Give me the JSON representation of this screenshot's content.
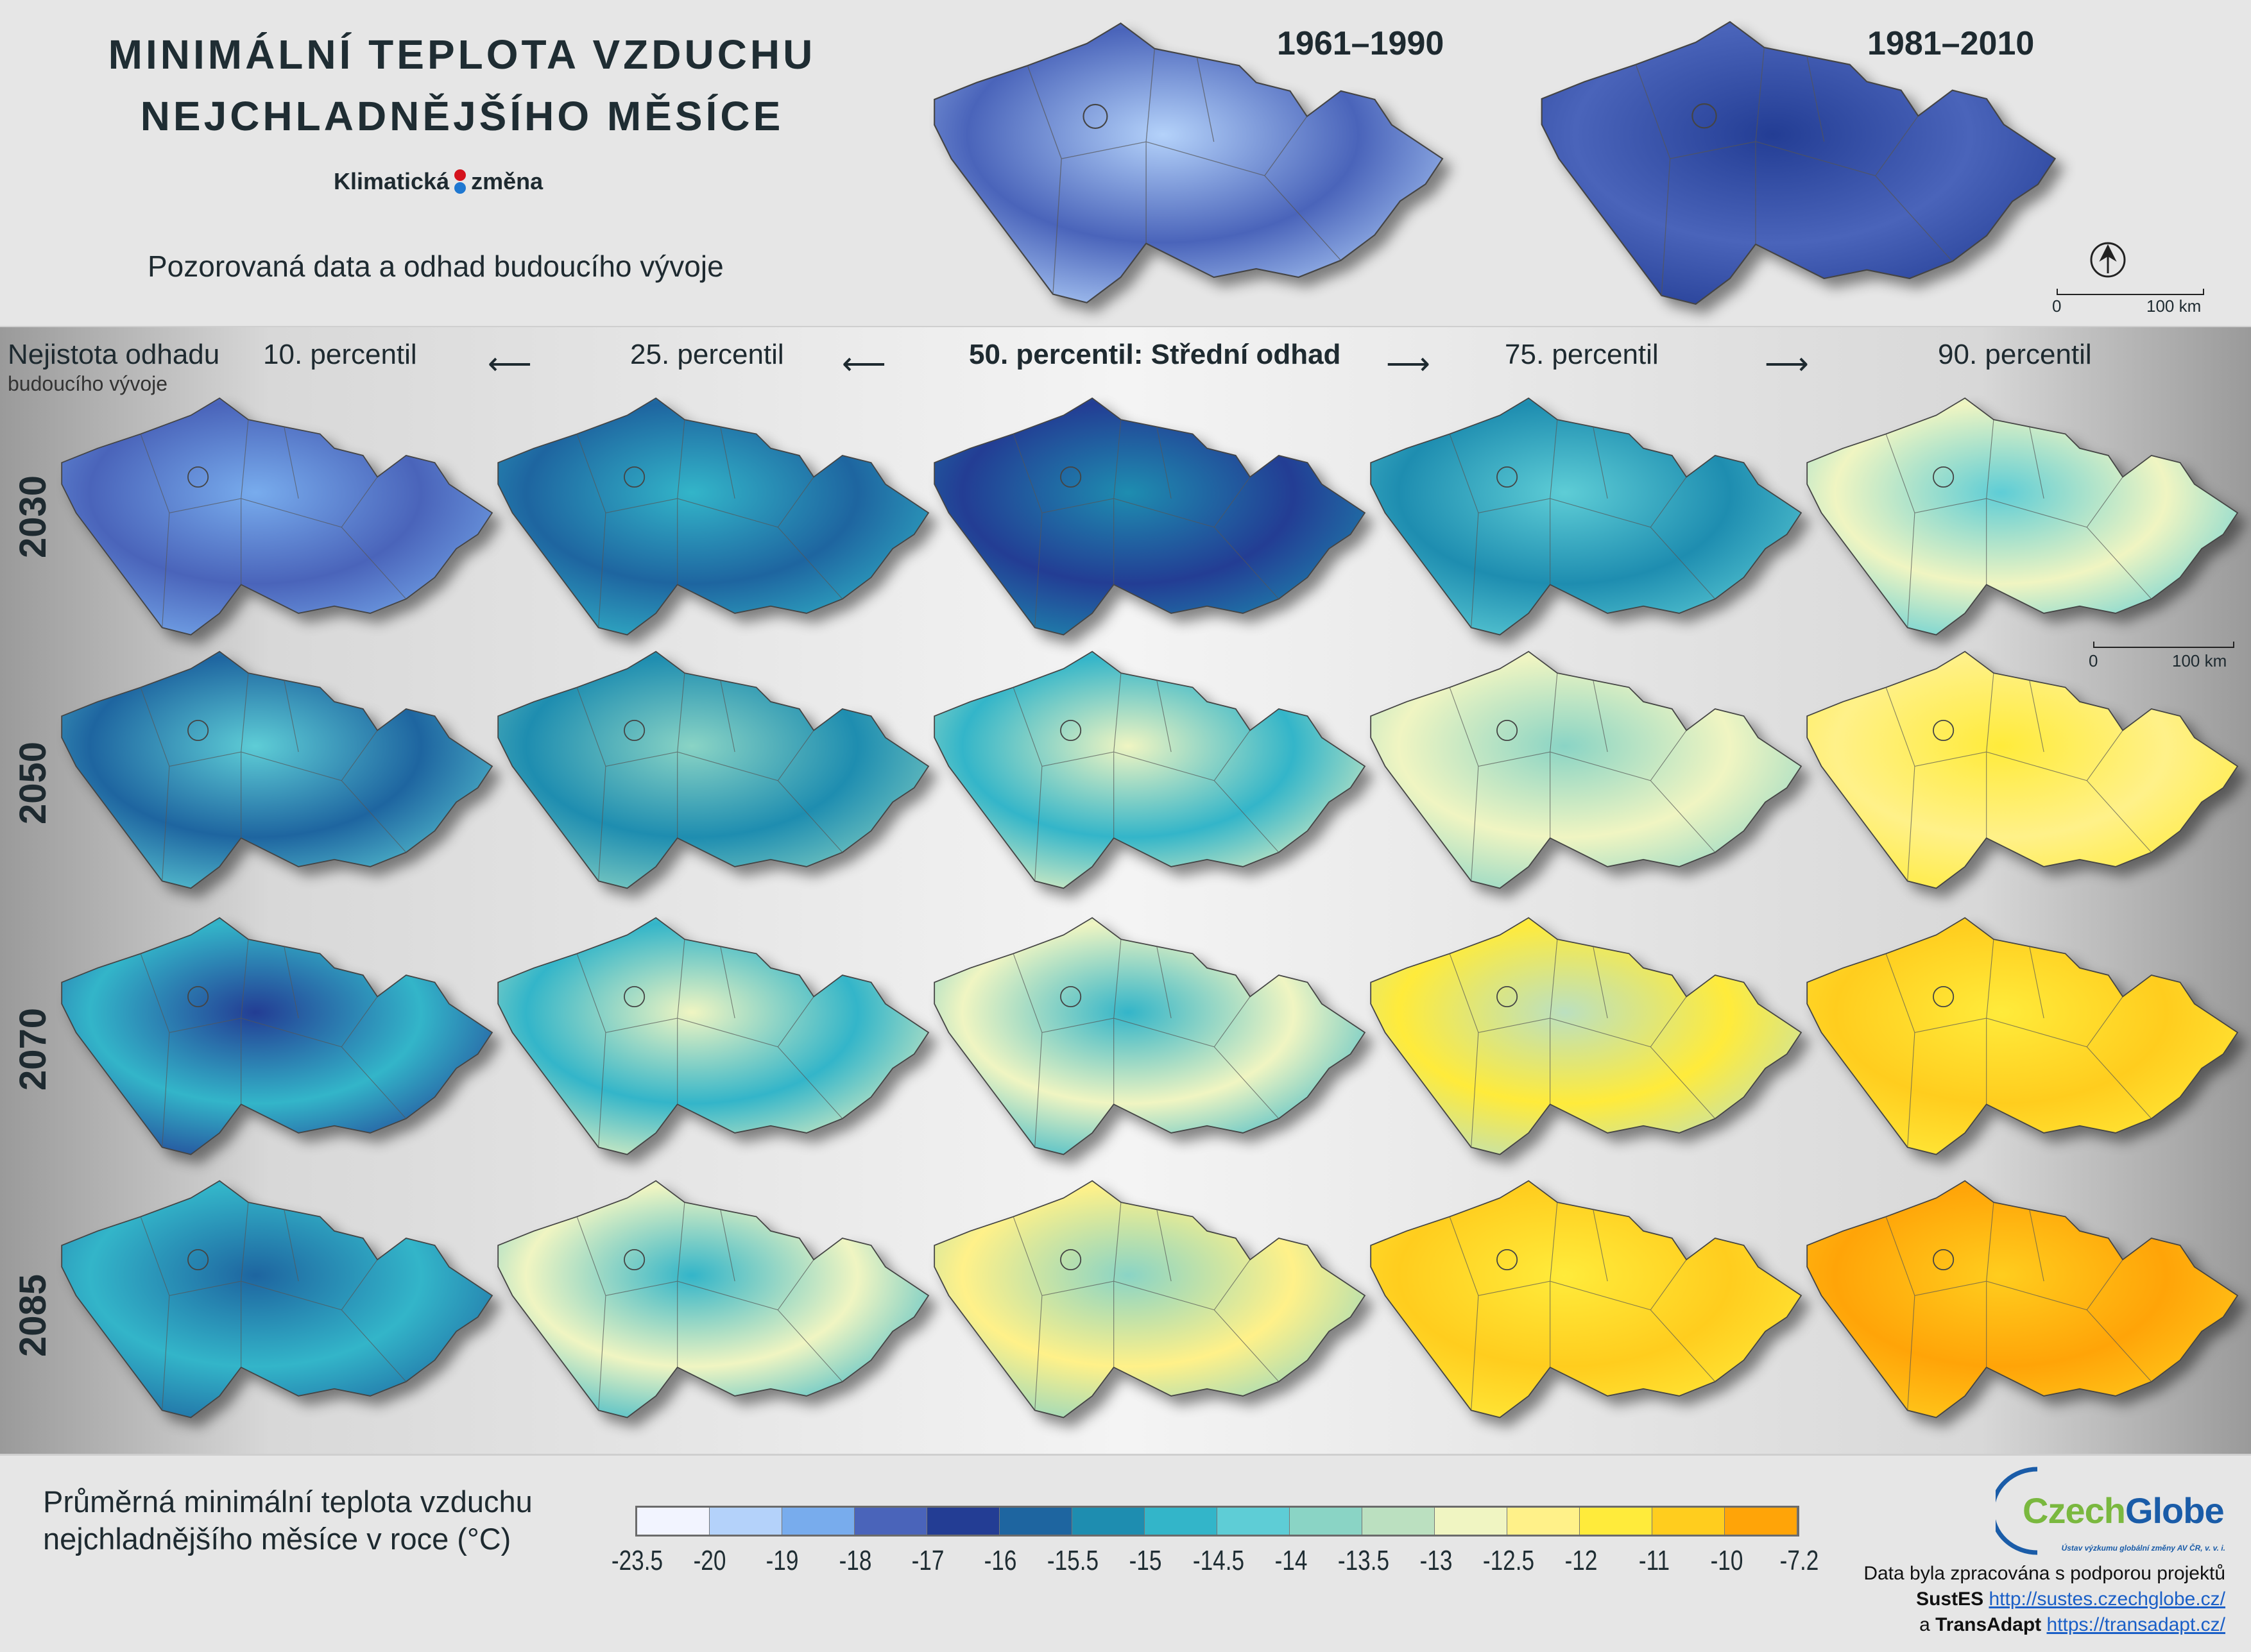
{
  "header": {
    "title_line1": "MINIMÁLNÍ TEPLOTA VZDUCHU",
    "title_line2": "NEJCHLADNĚJŠÍHO MĚSÍCE",
    "brand_left": "Klimatická",
    "brand_right": "změna",
    "subtitle": "Pozorovaná data a odhad budoucího vývoje",
    "periods": [
      "1961–1990",
      "1981–2010"
    ],
    "scale": {
      "zero": "0",
      "label": "100 km"
    }
  },
  "grid": {
    "uncertainty_line1": "Nejistota odhadu",
    "uncertainty_line2": "budoucího vývoje",
    "columns": [
      "10. percentil",
      "25. percentil",
      "50. percentil: Střední odhad",
      "75. percentil",
      "90. percentil"
    ],
    "arrow": "⟵",
    "arrow_right": "⟶",
    "rows": [
      {
        "year": "2030",
        "cells": [
          [
            "#4a64ba",
            "#78aced"
          ],
          [
            "#1e65a0",
            "#33b5c9"
          ],
          [
            "#233d94",
            "#1e8db0"
          ],
          [
            "#1e8db0",
            "#5ecdd6"
          ],
          [
            "#f0f5c2",
            "#5ecdd6"
          ]
        ]
      },
      {
        "year": "2050",
        "cells": [
          [
            "#1e65a0",
            "#5ecdd6"
          ],
          [
            "#1e8db0",
            "#8ad4c5"
          ],
          [
            "#33b5c9",
            "#f0f5c2"
          ],
          [
            "#f0f5c2",
            "#8ad4c5"
          ],
          [
            "#fff189",
            "#ffeb3b"
          ]
        ]
      },
      {
        "year": "2070",
        "cells": [
          [
            "#33b5c9",
            "#233d94"
          ],
          [
            "#33b5c9",
            "#f0f5c2"
          ],
          [
            "#f0f5c2",
            "#33b5c9"
          ],
          [
            "#ffeb3b",
            "#bbe0c0"
          ],
          [
            "#ffcd1e",
            "#ffeb3b"
          ]
        ]
      },
      {
        "year": "2085",
        "cells": [
          [
            "#33b5c9",
            "#1e65a0"
          ],
          [
            "#f0f5c2",
            "#33b5c9"
          ],
          [
            "#fff189",
            "#8ad4c5"
          ],
          [
            "#ffcd1e",
            "#ffeb3b"
          ],
          [
            "#ffa408",
            "#ffcd1e"
          ]
        ]
      }
    ],
    "observed": [
      [
        "#4a64ba",
        "#b4d2fa"
      ],
      [
        "#4a64ba",
        "#233d94"
      ]
    ],
    "scale": {
      "zero": "0",
      "label": "100 km"
    }
  },
  "legend": {
    "title_line1": "Průměrná minimální teplota vzduchu",
    "title_line2": "nejchladnějšího měsíce v roce (°C)",
    "colors": [
      "#f2f4ff",
      "#b4d2fa",
      "#78aced",
      "#4a64ba",
      "#233d94",
      "#1e65a0",
      "#1e8db0",
      "#33b5c9",
      "#5ecdd6",
      "#8ad4c5",
      "#bbe0c0",
      "#f0f5c2",
      "#fff189",
      "#ffeb3b",
      "#ffcd1e",
      "#ffa408"
    ],
    "ticks": [
      "-23.5",
      "-20",
      "-19",
      "-18",
      "-17",
      "-16",
      "-15.5",
      "-15",
      "-14.5",
      "-14",
      "-13.5",
      "-13",
      "-12.5",
      "-12",
      "-11",
      "-10",
      "-7.2"
    ]
  },
  "credits": {
    "logo": "CzechGlobe",
    "logo_sub": "Ústav výzkumu globální změny AV ČR, v. v. i.",
    "line1": "Data byla zpracována s podporou projektů",
    "project1": "SustES",
    "url1": "http://sustes.czechglobe.cz/",
    "connector": "a",
    "project2": "TransAdapt",
    "url2": "https://transadapt.cz/"
  }
}
